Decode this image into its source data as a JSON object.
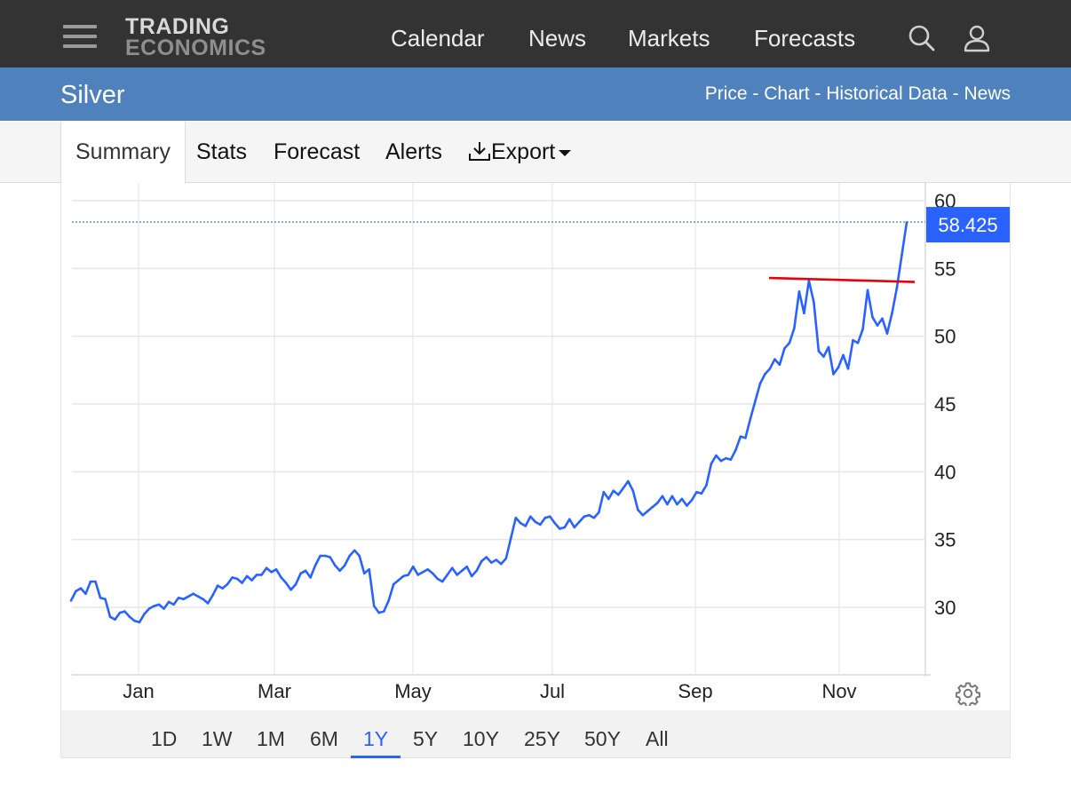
{
  "header": {
    "logo_line1": "TRADING",
    "logo_line2": "ECONOMICS",
    "nav": [
      "Calendar",
      "News",
      "Markets",
      "Forecasts"
    ],
    "icons": [
      "menu-icon",
      "search-icon",
      "user-icon"
    ]
  },
  "band": {
    "title": "Silver",
    "links": [
      "Price",
      "Chart",
      "Historical Data",
      "News"
    ],
    "separator": " - "
  },
  "tabs": {
    "summary": "Summary",
    "stats": "Stats",
    "forecast": "Forecast",
    "alerts": "Alerts",
    "export": "Export"
  },
  "ranges": {
    "items": [
      "1D",
      "1W",
      "1M",
      "6M",
      "1Y",
      "5Y",
      "10Y",
      "25Y",
      "50Y",
      "All"
    ],
    "active": "1Y"
  },
  "colors": {
    "topbar": "#333333",
    "band": "#4f81bd",
    "series": "#2962ff",
    "trendline": "#e8000b",
    "last_label": "#2962ff"
  },
  "chart_data": {
    "type": "line",
    "x_tick_labels": [
      "Jan",
      "Mar",
      "May",
      "Jul",
      "Sep",
      "Nov"
    ],
    "y_tick_labels": [
      "30",
      "35",
      "40",
      "45",
      "50",
      "55",
      "60"
    ],
    "ylim": [
      25,
      60
    ],
    "last_value": "58.425",
    "grid": true,
    "series": [
      {
        "values": [
          30.5,
          31.2,
          31.4,
          31.0,
          31.9,
          31.9,
          30.7,
          30.6,
          29.3,
          29.1,
          29.6,
          29.7,
          29.3,
          29.0,
          28.9,
          29.5,
          29.9,
          30.1,
          30.2,
          29.9,
          30.4,
          30.2,
          30.7,
          30.6,
          30.8,
          31.0,
          30.8,
          30.6,
          30.3,
          30.9,
          31.6,
          31.4,
          31.7,
          32.2,
          32.1,
          31.8,
          32.3,
          32.0,
          32.4,
          32.4,
          32.9,
          32.6,
          32.8,
          32.2,
          31.8,
          31.3,
          31.7,
          32.5,
          32.7,
          32.2,
          33.1,
          33.8,
          33.8,
          33.7,
          33.1,
          32.7,
          33.1,
          33.8,
          34.2,
          33.8,
          32.5,
          32.8,
          30.1,
          29.6,
          29.7,
          30.5,
          31.7,
          32.0,
          32.3,
          32.4,
          33.0,
          32.4,
          32.6,
          32.8,
          32.5,
          32.1,
          31.9,
          32.4,
          32.9,
          32.4,
          32.7,
          33.0,
          32.3,
          32.7,
          33.4,
          33.7,
          33.3,
          33.5,
          33.2,
          33.6,
          35.1,
          36.6,
          36.2,
          36.0,
          36.7,
          36.3,
          36.1,
          36.6,
          36.7,
          36.2,
          35.8,
          35.9,
          36.5,
          35.9,
          36.3,
          36.7,
          36.8,
          36.6,
          37.0,
          38.5,
          38.0,
          38.6,
          38.3,
          38.8,
          39.3,
          38.6,
          37.2,
          36.8,
          37.1,
          37.4,
          37.7,
          38.2,
          37.6,
          38.2,
          37.6,
          38.0,
          37.5,
          37.9,
          38.5,
          38.4,
          39.0,
          40.6,
          41.2,
          40.8,
          41.0,
          40.9,
          41.6,
          42.6,
          42.5,
          43.9,
          45.2,
          46.5,
          47.2,
          47.6,
          48.3,
          47.9,
          49.1,
          49.5,
          50.6,
          53.3,
          51.7,
          54.1,
          52.5,
          48.9,
          48.5,
          49.2,
          47.2,
          47.7,
          48.6,
          47.6,
          49.7,
          49.5,
          50.5,
          53.4,
          51.4,
          50.8,
          51.3,
          50.2,
          51.7,
          53.6,
          56.0,
          58.4
        ],
        "color": "#2962ff"
      }
    ],
    "annotations": [
      {
        "type": "trendline",
        "from": {
          "date": "Oct 2025",
          "value": 54.3
        },
        "to": {
          "date": "Dec 2025",
          "value": 54.0
        },
        "color": "#e8000b"
      },
      {
        "type": "last-price-line",
        "value": 58.425
      }
    ]
  }
}
